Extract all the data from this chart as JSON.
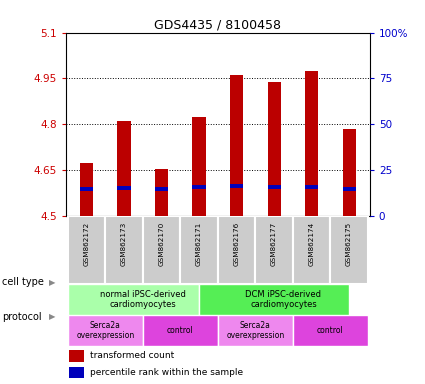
{
  "title": "GDS4435 / 8100458",
  "samples": [
    "GSM862172",
    "GSM862173",
    "GSM862170",
    "GSM862171",
    "GSM862176",
    "GSM862177",
    "GSM862174",
    "GSM862175"
  ],
  "red_values": [
    4.675,
    4.81,
    4.655,
    4.825,
    4.96,
    4.94,
    4.975,
    4.785
  ],
  "blue_values": [
    4.583,
    4.585,
    4.582,
    4.588,
    4.592,
    4.59,
    4.588,
    4.583
  ],
  "bar_bottom": 4.5,
  "ylim": [
    4.5,
    5.1
  ],
  "yticks": [
    4.5,
    4.65,
    4.8,
    4.95,
    5.1
  ],
  "ytick_labels": [
    "4.5",
    "4.65",
    "4.8",
    "4.95",
    "5.1"
  ],
  "y2ticks": [
    0,
    25,
    50,
    75,
    100
  ],
  "y2tick_labels": [
    "0",
    "25",
    "50",
    "75",
    "100%"
  ],
  "red_color": "#bb0000",
  "blue_color": "#0000bb",
  "left_tick_color": "#cc0000",
  "right_tick_color": "#0000cc",
  "grid_color": "#000000",
  "cell_type_groups": [
    {
      "label": "normal iPSC-derived\ncardiomyocytes",
      "start": 0,
      "end": 3,
      "color": "#aaffaa"
    },
    {
      "label": "DCM iPSC-derived\ncardiomyocytes",
      "start": 4,
      "end": 7,
      "color": "#55ee55"
    }
  ],
  "protocol_groups": [
    {
      "label": "Serca2a\noverexpression",
      "start": 0,
      "end": 1,
      "color": "#ee88ee"
    },
    {
      "label": "control",
      "start": 2,
      "end": 3,
      "color": "#dd44dd"
    },
    {
      "label": "Serca2a\noverexpression",
      "start": 4,
      "end": 5,
      "color": "#ee88ee"
    },
    {
      "label": "control",
      "start": 6,
      "end": 7,
      "color": "#dd44dd"
    }
  ],
  "cell_type_label": "cell type",
  "protocol_label": "protocol",
  "legend_red": "transformed count",
  "legend_blue": "percentile rank within the sample",
  "bar_width": 0.35,
  "sample_box_color": "#cccccc",
  "sample_box_edge": "#ffffff"
}
